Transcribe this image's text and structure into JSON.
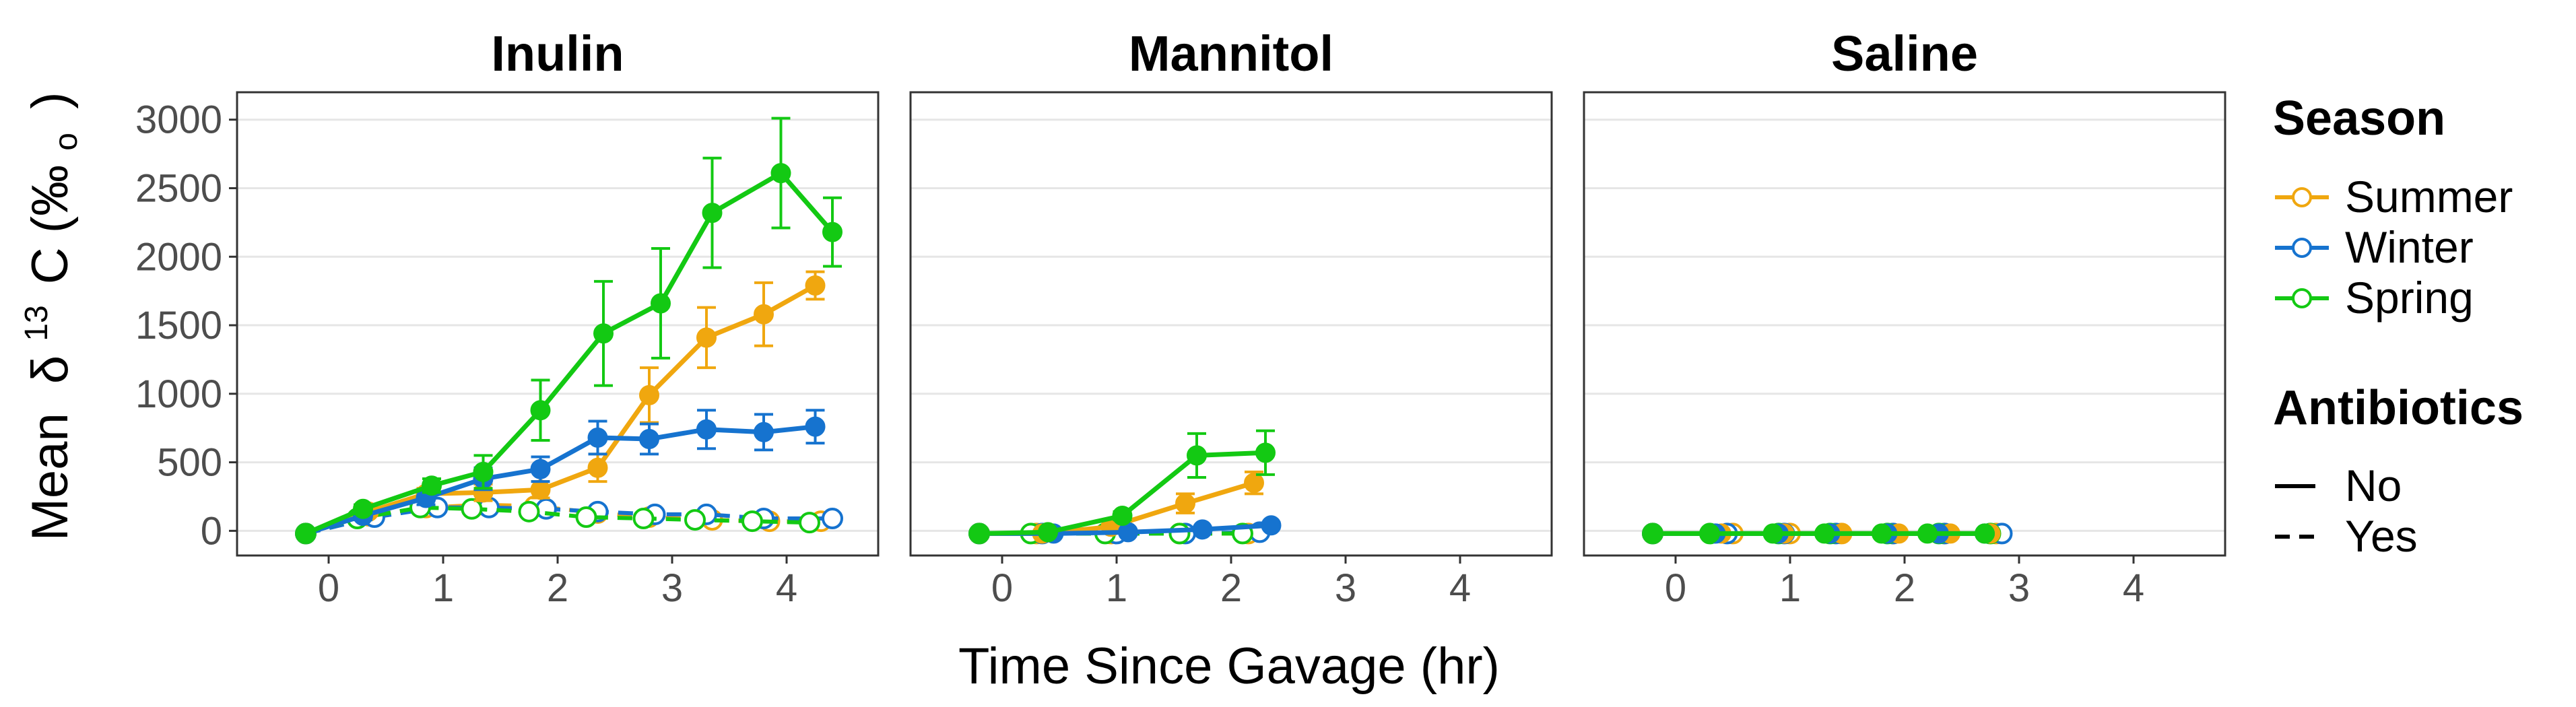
{
  "figure": {
    "ylabel_prefix": "Mean",
    "ylabel_delta": "δ",
    "ylabel_super": "13",
    "ylabel_element": "C (‰",
    "ylabel_sub": "o",
    "ylabel_close": ")",
    "xlabel": "Time Since Gavage (hr)"
  },
  "legend": {
    "season_title": "Season",
    "season_items": [
      {
        "label": "Summer",
        "color": "#F0A70F"
      },
      {
        "label": "Winter",
        "color": "#1673CF"
      },
      {
        "label": "Spring",
        "color": "#13C913"
      }
    ],
    "antibiotics_title": "Antibiotics",
    "antibiotics_items": [
      {
        "label": "No",
        "linetype": "solid"
      },
      {
        "label": "Yes",
        "linetype": "dashed"
      }
    ]
  },
  "chart_data": {
    "type": "line",
    "facets": [
      "Inulin",
      "Mannitol",
      "Saline"
    ],
    "xlim": [
      -0.8,
      4.8
    ],
    "ylim": [
      -180,
      3200
    ],
    "x_ticks": [
      0,
      1,
      2,
      3,
      4
    ],
    "y_ticks": [
      0,
      500,
      1000,
      1500,
      2000,
      2500,
      3000
    ],
    "grid": "horizontal",
    "legend_position": "right",
    "series": [
      {
        "facet": "Inulin",
        "season": "Summer",
        "antibiotics": "No",
        "x": [
          -0.2,
          0.35,
          0.85,
          1.35,
          1.85,
          2.35,
          2.8,
          3.3,
          3.8,
          4.25
        ],
        "y": [
          -20,
          140,
          270,
          280,
          300,
          460,
          990,
          1410,
          1580,
          1790
        ],
        "err": [
          0,
          30,
          40,
          60,
          60,
          100,
          200,
          220,
          230,
          100
        ]
      },
      {
        "facet": "Inulin",
        "season": "Winter",
        "antibiotics": "No",
        "x": [
          -0.2,
          0.3,
          0.85,
          1.35,
          1.85,
          2.35,
          2.8,
          3.3,
          3.8,
          4.25
        ],
        "y": [
          -20,
          110,
          240,
          380,
          450,
          680,
          670,
          740,
          720,
          760
        ],
        "err": [
          0,
          30,
          50,
          80,
          90,
          120,
          110,
          140,
          130,
          120
        ]
      },
      {
        "facet": "Inulin",
        "season": "Spring",
        "antibiotics": "No",
        "x": [
          -0.2,
          0.3,
          0.9,
          1.35,
          1.85,
          2.4,
          2.9,
          3.35,
          3.95,
          4.4
        ],
        "y": [
          -20,
          160,
          330,
          430,
          880,
          1440,
          1660,
          2320,
          2610,
          2180
        ],
        "err": [
          0,
          30,
          50,
          120,
          220,
          380,
          400,
          400,
          400,
          250
        ]
      },
      {
        "facet": "Inulin",
        "season": "Summer",
        "antibiotics": "Yes",
        "x": [
          -0.2,
          0.35,
          0.85,
          1.35,
          1.8,
          2.35,
          2.8,
          3.35,
          3.85,
          4.3
        ],
        "y": [
          -20,
          110,
          170,
          190,
          180,
          130,
          100,
          80,
          70,
          70
        ],
        "err": [
          0,
          20,
          30,
          30,
          30,
          30,
          30,
          30,
          30,
          30
        ]
      },
      {
        "facet": "Inulin",
        "season": "Winter",
        "antibiotics": "Yes",
        "x": [
          -0.2,
          0.4,
          0.95,
          1.4,
          1.9,
          2.35,
          2.85,
          3.3,
          3.8,
          4.4
        ],
        "y": [
          -20,
          100,
          170,
          170,
          160,
          140,
          120,
          120,
          90,
          90
        ],
        "err": [
          0,
          20,
          30,
          30,
          30,
          30,
          30,
          30,
          30,
          30
        ]
      },
      {
        "facet": "Inulin",
        "season": "Spring",
        "antibiotics": "Yes",
        "x": [
          -0.2,
          0.25,
          0.8,
          1.25,
          1.75,
          2.25,
          2.75,
          3.2,
          3.7,
          4.2
        ],
        "y": [
          -20,
          90,
          170,
          160,
          140,
          100,
          90,
          80,
          70,
          60
        ],
        "err": [
          0,
          20,
          30,
          30,
          30,
          30,
          30,
          30,
          30,
          30
        ]
      },
      {
        "facet": "Mannitol",
        "season": "Summer",
        "antibiotics": "No",
        "x": [
          -0.2,
          0.35,
          0.95,
          1.6,
          2.2
        ],
        "y": [
          -20,
          -20,
          30,
          200,
          350
        ],
        "err": [
          0,
          10,
          30,
          70,
          80
        ]
      },
      {
        "facet": "Mannitol",
        "season": "Winter",
        "antibiotics": "No",
        "x": [
          -0.2,
          0.45,
          1.1,
          1.75,
          2.35
        ],
        "y": [
          -20,
          -20,
          -10,
          10,
          40
        ],
        "err": [
          0,
          10,
          10,
          20,
          20
        ]
      },
      {
        "facet": "Mannitol",
        "season": "Spring",
        "antibiotics": "No",
        "x": [
          -0.2,
          0.4,
          1.05,
          1.7,
          2.3
        ],
        "y": [
          -20,
          -10,
          110,
          550,
          570
        ],
        "err": [
          0,
          10,
          30,
          160,
          160
        ]
      },
      {
        "facet": "Mannitol",
        "season": "Summer",
        "antibiotics": "Yes",
        "x": [
          -0.2,
          0.3,
          0.95,
          1.55,
          2.15
        ],
        "y": [
          -20,
          -20,
          -20,
          -20,
          -20
        ],
        "err": [
          0,
          5,
          5,
          5,
          5
        ]
      },
      {
        "facet": "Mannitol",
        "season": "Winter",
        "antibiotics": "Yes",
        "x": [
          -0.2,
          0.35,
          1.0,
          1.6,
          2.25
        ],
        "y": [
          -20,
          -20,
          -20,
          -20,
          -10
        ],
        "err": [
          0,
          5,
          5,
          5,
          5
        ]
      },
      {
        "facet": "Mannitol",
        "season": "Spring",
        "antibiotics": "Yes",
        "x": [
          -0.2,
          0.25,
          0.9,
          1.55,
          2.1
        ],
        "y": [
          -20,
          -20,
          -20,
          -20,
          -20
        ],
        "err": [
          0,
          5,
          5,
          5,
          5
        ]
      },
      {
        "facet": "Saline",
        "season": "Summer",
        "antibiotics": "No",
        "x": [
          -0.2,
          0.4,
          0.95,
          1.45,
          1.95,
          2.4,
          2.75
        ],
        "y": [
          -20,
          -20,
          -20,
          -20,
          -20,
          -20,
          -20
        ],
        "err": [
          0,
          5,
          5,
          5,
          5,
          5,
          5
        ]
      },
      {
        "facet": "Saline",
        "season": "Winter",
        "antibiotics": "No",
        "x": [
          -0.2,
          0.35,
          0.9,
          1.35,
          1.85,
          2.3,
          2.7
        ],
        "y": [
          -20,
          -20,
          -20,
          -20,
          -20,
          -20,
          -20
        ],
        "err": [
          0,
          5,
          5,
          5,
          5,
          5,
          5
        ]
      },
      {
        "facet": "Saline",
        "season": "Spring",
        "antibiotics": "No",
        "x": [
          -0.2,
          0.3,
          0.85,
          1.3,
          1.8,
          2.2,
          2.7
        ],
        "y": [
          -20,
          -20,
          -20,
          -20,
          -20,
          -20,
          -20
        ],
        "err": [
          0,
          5,
          5,
          5,
          5,
          5,
          5
        ]
      },
      {
        "facet": "Saline",
        "season": "Summer",
        "antibiotics": "Yes",
        "x": [
          -0.2,
          0.5,
          1.0,
          1.45,
          1.9,
          2.35,
          2.8
        ],
        "y": [
          -20,
          -20,
          -20,
          -20,
          -20,
          -20,
          -20
        ],
        "err": [
          0,
          5,
          5,
          5,
          5,
          5,
          5
        ]
      },
      {
        "facet": "Saline",
        "season": "Winter",
        "antibiotics": "Yes",
        "x": [
          -0.2,
          0.45,
          0.95,
          1.4,
          1.9,
          2.35,
          2.85
        ],
        "y": [
          -20,
          -20,
          -20,
          -20,
          -20,
          -20,
          -20
        ],
        "err": [
          0,
          5,
          5,
          5,
          5,
          5,
          5
        ]
      },
      {
        "facet": "Saline",
        "season": "Spring",
        "antibiotics": "Yes",
        "x": [
          -0.2,
          0.3,
          0.9,
          1.35,
          1.85,
          2.3,
          2.75
        ],
        "y": [
          -20,
          -20,
          -20,
          -20,
          -20,
          -20,
          -20
        ],
        "err": [
          0,
          5,
          5,
          5,
          5,
          5,
          5
        ]
      }
    ]
  }
}
